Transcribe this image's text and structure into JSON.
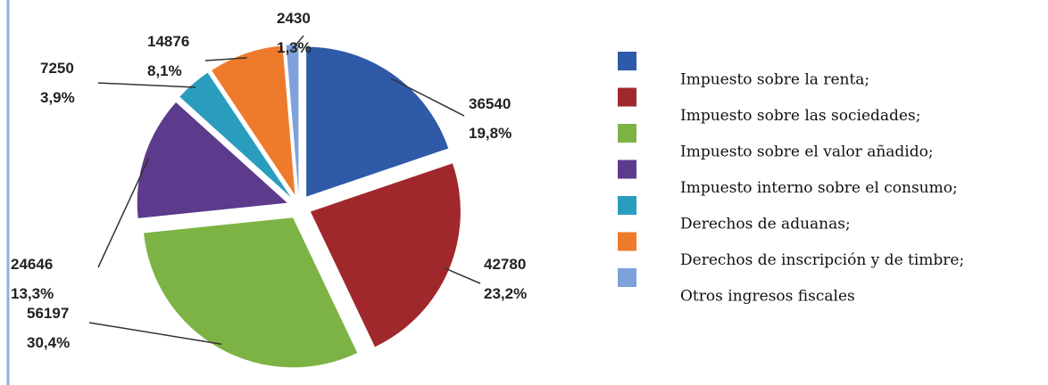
{
  "chart_data": {
    "type": "pie",
    "categories": [
      "Impuesto sobre la renta;",
      "Impuesto sobre las sociedades;",
      "Impuesto sobre el valor añadido;",
      "Impuesto interno sobre el consumo;",
      "Derechos de aduanas;",
      "Derechos de inscripción y de timbre;",
      "Otros ingresos fiscales"
    ],
    "values": [
      36540,
      42780,
      56197,
      24646,
      7250,
      14876,
      2430
    ],
    "percentages": [
      19.8,
      23.2,
      30.4,
      13.3,
      3.9,
      8.1,
      1.3
    ],
    "percentage_labels": [
      "19,8%",
      "23,2%",
      "30,4%",
      "13,3%",
      "3,9%",
      "8,1%",
      "1,3%"
    ],
    "colors": [
      "#2e5aa8",
      "#a0282c",
      "#7db344",
      "#5c3a8c",
      "#2a9dbf",
      "#ee7b2b",
      "#7ea1d9"
    ],
    "legend": "right"
  }
}
